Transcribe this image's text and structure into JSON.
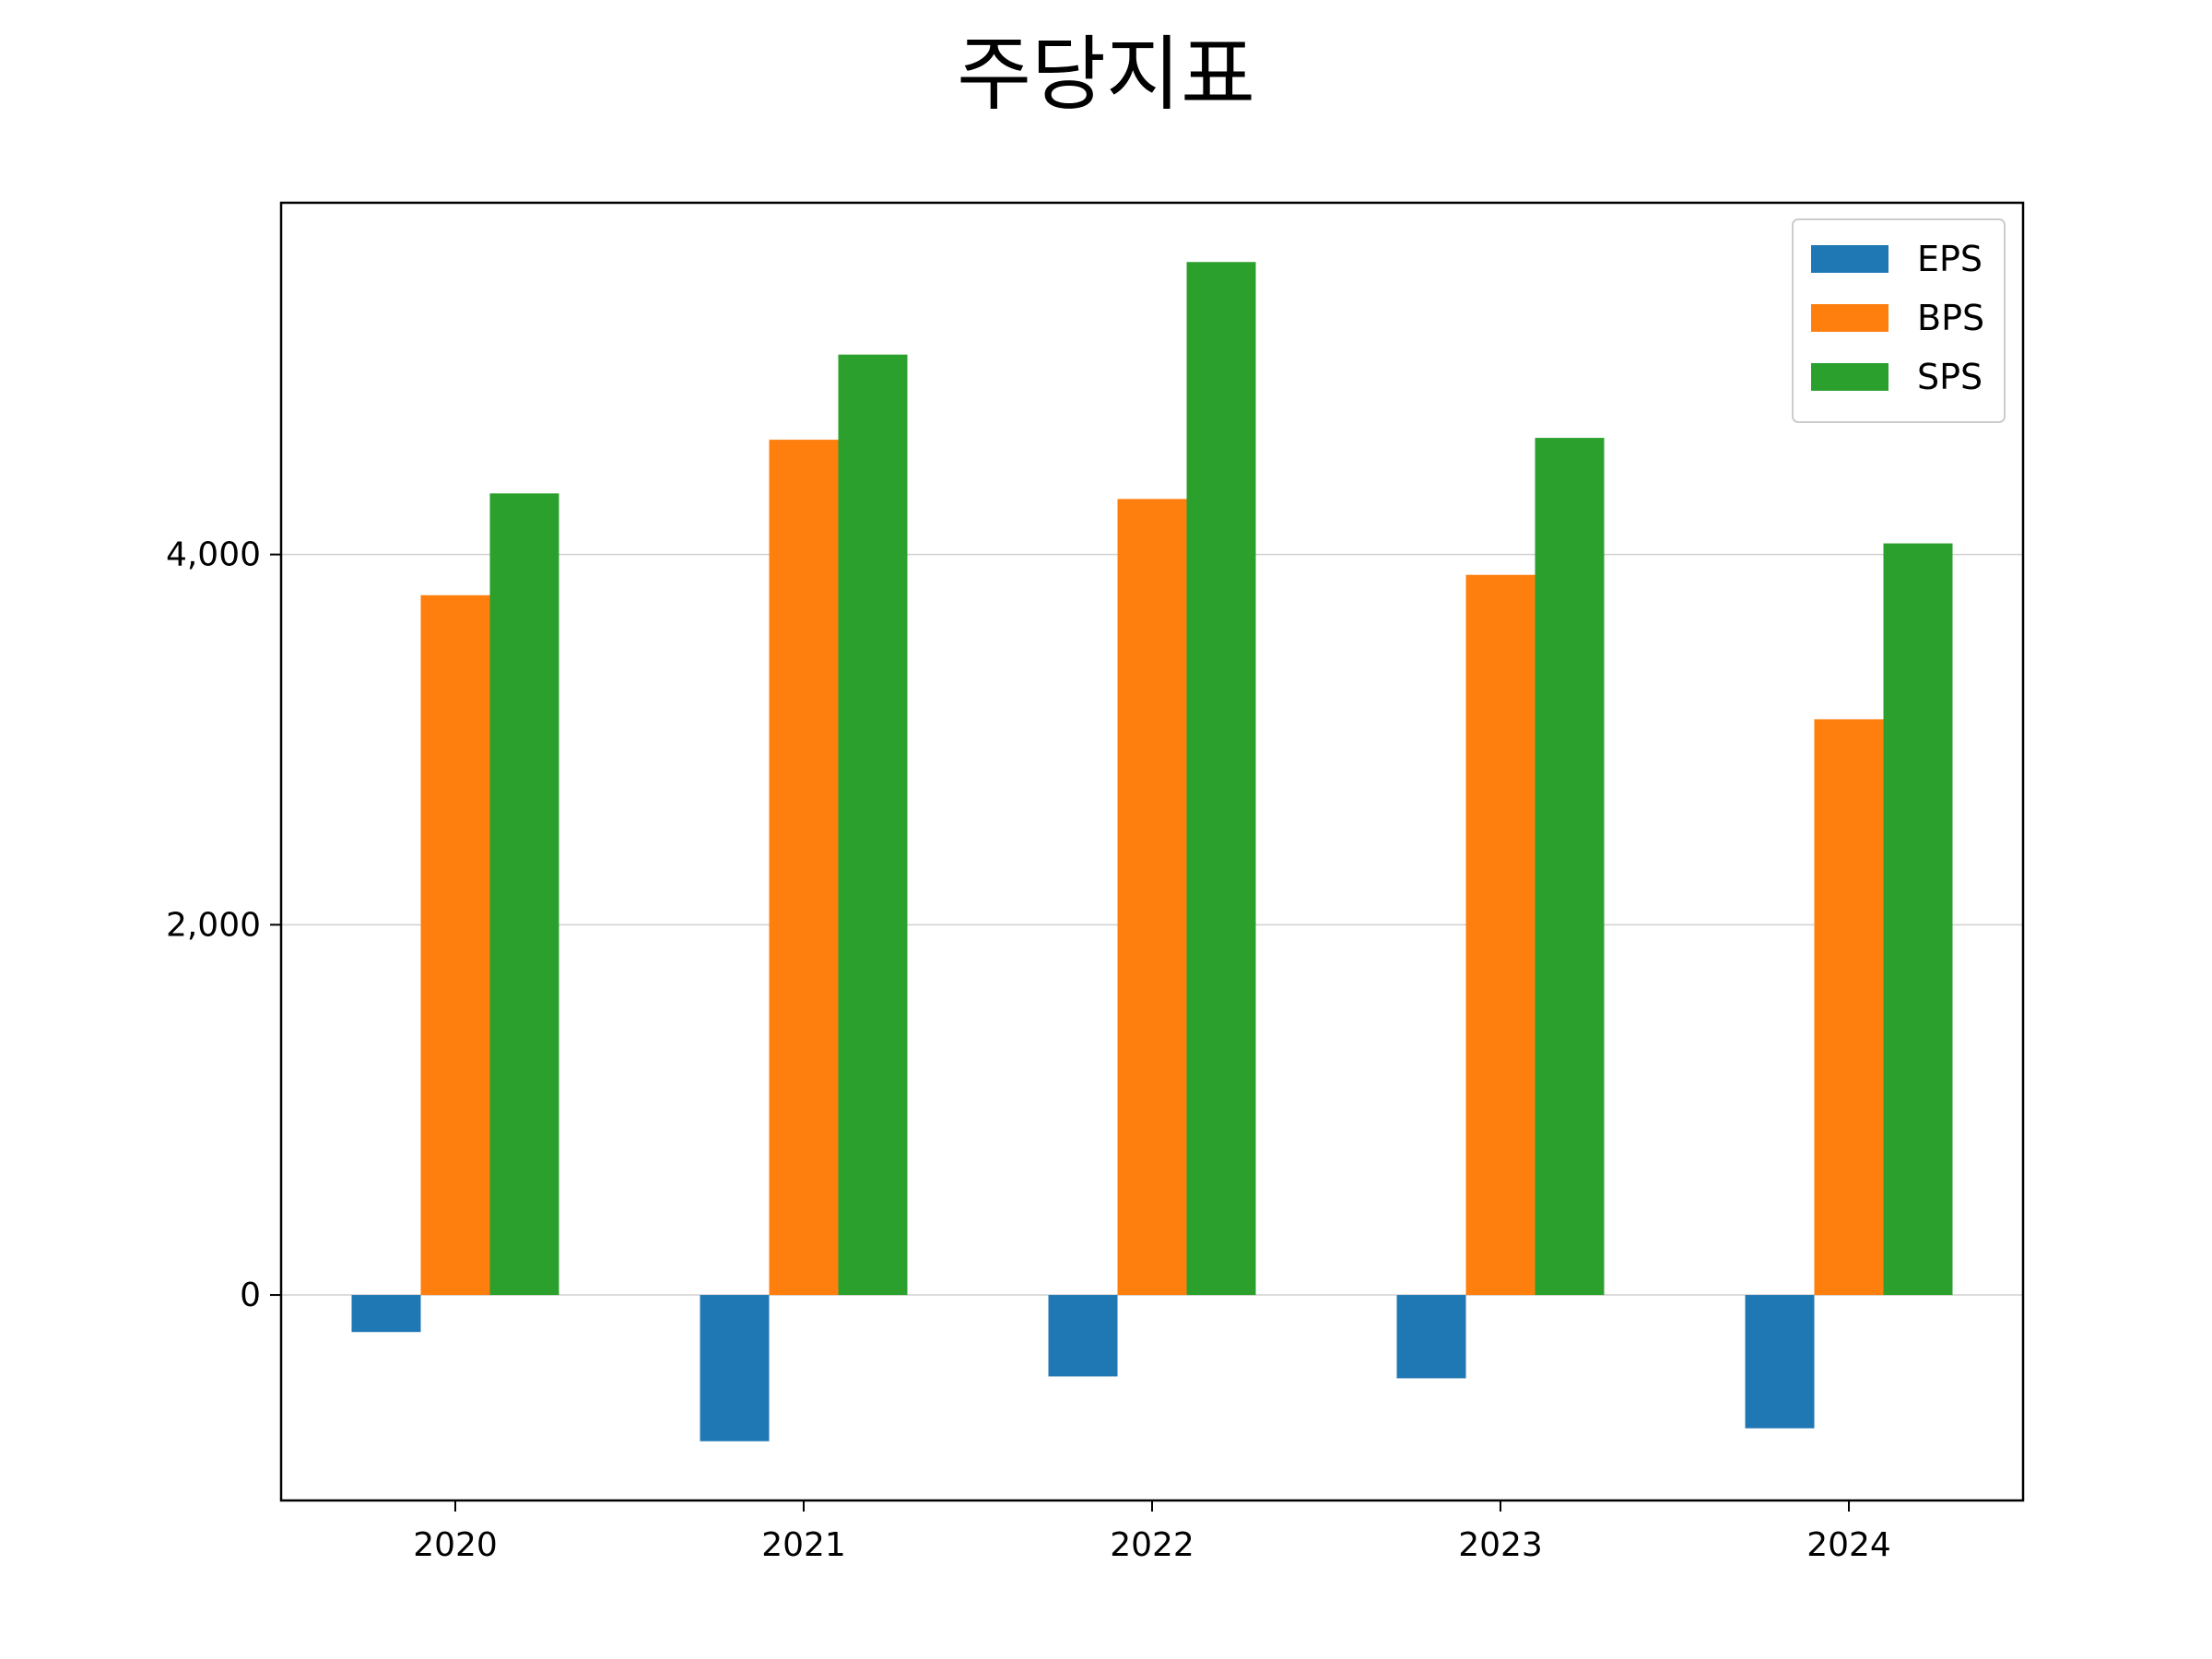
{
  "chart_data": {
    "type": "bar",
    "title": "주당지표",
    "xlabel": "",
    "ylabel": "",
    "categories": [
      "2020",
      "2021",
      "2022",
      "2023",
      "2024"
    ],
    "series": [
      {
        "name": "EPS",
        "color": "#1f77b4",
        "values": [
          -200,
          -790,
          -440,
          -450,
          -720
        ]
      },
      {
        "name": "BPS",
        "color": "#ff7f0e",
        "values": [
          3780,
          4620,
          4300,
          3890,
          3110
        ]
      },
      {
        "name": "SPS",
        "color": "#2ca02c",
        "values": [
          4330,
          5080,
          5580,
          4630,
          4060
        ]
      }
    ],
    "ylim": [
      -1110,
      5900
    ],
    "yticks": [
      0,
      2000,
      4000
    ],
    "ytick_labels": [
      "0",
      "2,000",
      "4,000"
    ],
    "grid": "horizontal",
    "legend": "top-right"
  }
}
